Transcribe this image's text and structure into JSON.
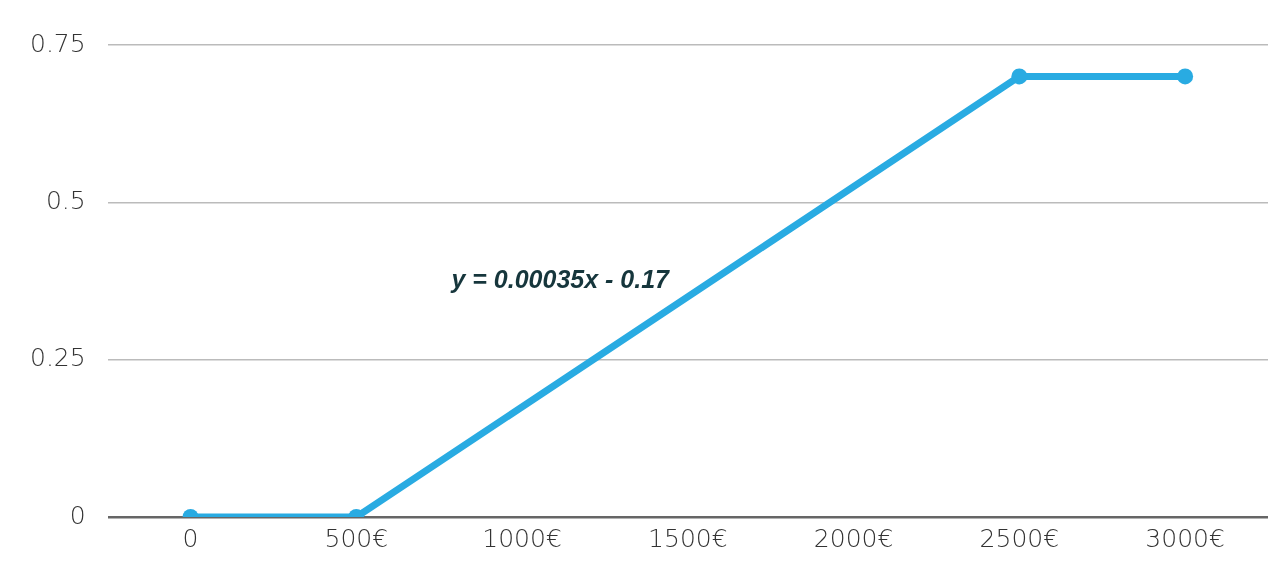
{
  "chart_data": {
    "type": "line",
    "x": [
      0,
      500,
      2500,
      3000
    ],
    "series": [
      {
        "color": "#29abe2",
        "values": [
          0,
          0,
          0.7,
          0.7
        ]
      }
    ],
    "xlim": [
      -250,
      3250
    ],
    "xticks": [
      0,
      {
        "value": 500,
        "label": "500€"
      },
      {
        "value": 1000,
        "label": "1000€"
      },
      {
        "value": 1500,
        "label": "1500€"
      },
      {
        "value": 2000,
        "label": "2000€"
      },
      {
        "value": 2500,
        "label": "2500€"
      },
      {
        "value": 3000,
        "label": "3000€"
      }
    ],
    "ylim": [
      0,
      0.75
    ],
    "yticks": [
      0,
      0.25,
      0.5,
      0.75
    ],
    "grid": "y",
    "legend": false,
    "marker": "circle",
    "line_style": "solid",
    "annotations": [
      "y = 0.00035x - 0.17"
    ]
  }
}
